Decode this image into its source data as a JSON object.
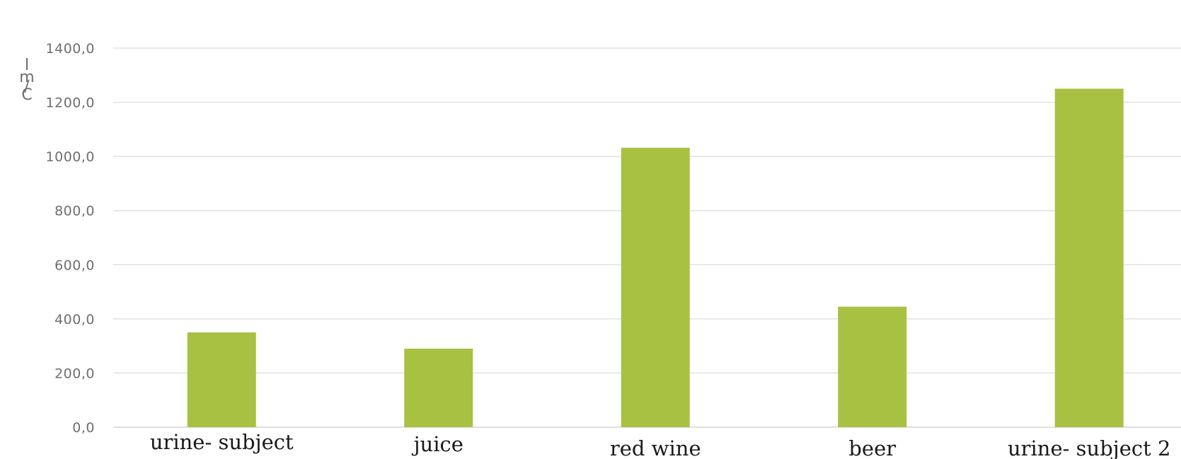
{
  "chart_data": {
    "type": "bar",
    "categories": [
      "urine- subject",
      "juice",
      "red wine",
      "beer",
      "urine- subject 2"
    ],
    "values": [
      350,
      290,
      1032,
      445,
      1250
    ],
    "ylabel": "l m/C",
    "ylim": [
      0,
      1400
    ],
    "yticks": [
      "0,0",
      "200,0",
      "400,0",
      "600,0",
      "800,0",
      "1000,0",
      "1200,0",
      "1400,0"
    ],
    "bar_color": "#a8c143",
    "grid": true,
    "legend": "none"
  }
}
